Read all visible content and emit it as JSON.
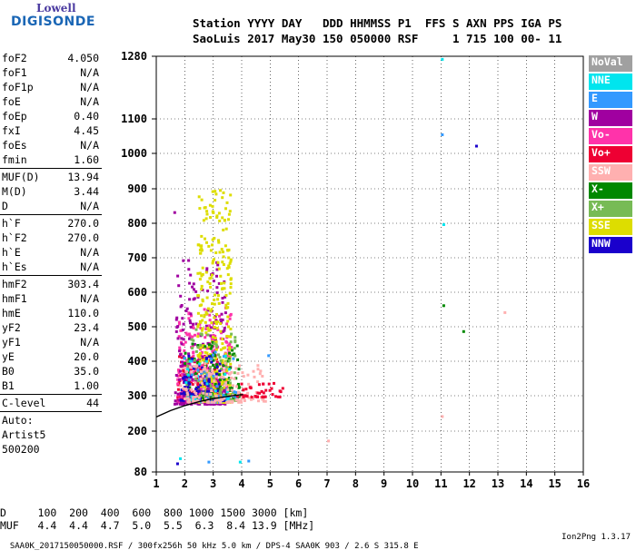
{
  "logo": {
    "line1": "Lowell",
    "line2": "DIGISONDE"
  },
  "header": {
    "row1": "Station YYYY DAY   DDD HHMMSS P1  FFS S AXN PPS IGA PS",
    "row2": "SaoLuis 2017 May30 150 050000 RSF     1 715 100 00- 11"
  },
  "params": [
    {
      "label": "foF2",
      "value": "4.050"
    },
    {
      "label": "foF1",
      "value": "N/A"
    },
    {
      "label": "foF1p",
      "value": "N/A"
    },
    {
      "label": "foE",
      "value": "N/A"
    },
    {
      "label": "foEp",
      "value": "0.40"
    },
    {
      "label": "fxI",
      "value": "4.45"
    },
    {
      "label": "foEs",
      "value": "N/A"
    },
    {
      "label": "fmin",
      "value": "1.60"
    },
    {
      "sep": true
    },
    {
      "label": "MUF(D)",
      "value": "13.94"
    },
    {
      "label": "M(D)",
      "value": "3.44"
    },
    {
      "label": "D",
      "value": "N/A"
    },
    {
      "sep": true
    },
    {
      "label": "h`F",
      "value": "270.0"
    },
    {
      "label": "h`F2",
      "value": "270.0"
    },
    {
      "label": "h`E",
      "value": "N/A"
    },
    {
      "label": "h`Es",
      "value": "N/A"
    },
    {
      "sep": true
    },
    {
      "label": "hmF2",
      "value": "303.4"
    },
    {
      "label": "hmF1",
      "value": "N/A"
    },
    {
      "label": "hmE",
      "value": "110.0"
    },
    {
      "label": "yF2",
      "value": "23.4"
    },
    {
      "label": "yF1",
      "value": "N/A"
    },
    {
      "label": "yE",
      "value": "20.0"
    },
    {
      "label": "B0",
      "value": "35.0"
    },
    {
      "label": "B1",
      "value": "1.00"
    },
    {
      "sep": true
    },
    {
      "label": "C-level",
      "value": "44"
    },
    {
      "sep": true
    },
    {
      "plain": "Auto:"
    },
    {
      "plain": "Artist5"
    },
    {
      "plain": "500200"
    }
  ],
  "legend": [
    {
      "label": "NoVal",
      "color": "#a0a0a0"
    },
    {
      "label": "NNE",
      "color": "#00e5ee"
    },
    {
      "label": "E",
      "color": "#3399ff"
    },
    {
      "label": "W",
      "color": "#a000a0"
    },
    {
      "label": "Vo-",
      "color": "#ff33aa"
    },
    {
      "label": "Vo+",
      "color": "#ee0033"
    },
    {
      "label": "SSW",
      "color": "#ffb0b0"
    },
    {
      "label": "X-",
      "color": "#008800"
    },
    {
      "label": "X+",
      "color": "#77bb55"
    },
    {
      "label": "SSE",
      "color": "#dddd00"
    },
    {
      "label": "NNW",
      "color": "#1a00cc"
    }
  ],
  "footer": {
    "row1": "D     100  200  400  600  800 1000 1500 3000 [km]",
    "row2": "MUF   4.4  4.4  4.7  5.0  5.5  6.3  8.4 13.9 [MHz]",
    "source": "SAA0K_2017150050000.RSF / 300fx256h 50 kHz 5.0 km / DPS-4 SAA0K 903 / 2.6 S 315.8 E",
    "version": "Ion2Png 1.3.17"
  },
  "chart_data": {
    "type": "scatter",
    "x_axis": {
      "range": [
        1,
        16
      ],
      "ticks": [
        "1",
        "2",
        "3",
        "4",
        "5",
        "6",
        "7",
        "8",
        "9",
        "10",
        "11",
        "12",
        "13",
        "14",
        "15",
        "16"
      ]
    },
    "y_axis": {
      "range": [
        80,
        1280
      ],
      "ticks": [
        "80",
        "200",
        "300",
        "400",
        "500",
        "600",
        "700",
        "800",
        "900",
        "1000",
        "1100",
        "1280"
      ]
    },
    "grid": true,
    "clusters": [
      {
        "color": "#ee0033",
        "x": [
          1.7,
          3.2
        ],
        "y": [
          285,
          420
        ],
        "count": 260
      },
      {
        "color": "#ff33aa",
        "x": [
          1.7,
          3.6
        ],
        "y": [
          285,
          560
        ],
        "count": 320
      },
      {
        "color": "#a000a0",
        "x": [
          1.6,
          3.4
        ],
        "y": [
          280,
          700
        ],
        "count": 240
      },
      {
        "color": "#dddd00",
        "x": [
          2.4,
          3.6
        ],
        "y": [
          285,
          900
        ],
        "count": 360
      },
      {
        "color": "#008800",
        "x": [
          1.9,
          3.9
        ],
        "y": [
          290,
          460
        ],
        "count": 110
      },
      {
        "color": "#77bb55",
        "x": [
          2.0,
          3.8
        ],
        "y": [
          290,
          500
        ],
        "count": 90
      },
      {
        "color": "#1a00cc",
        "x": [
          1.8,
          3.4
        ],
        "y": [
          290,
          420
        ],
        "count": 80
      },
      {
        "color": "#3399ff",
        "x": [
          1.9,
          3.8
        ],
        "y": [
          285,
          440
        ],
        "count": 50
      },
      {
        "color": "#00e5ee",
        "x": [
          2.0,
          3.6
        ],
        "y": [
          290,
          420
        ],
        "count": 30
      },
      {
        "color": "#ffb0b0",
        "x": [
          1.8,
          4.8
        ],
        "y": [
          285,
          400
        ],
        "count": 140
      },
      {
        "color": "#ee0033",
        "x": [
          3.8,
          5.4
        ],
        "y": [
          300,
          340
        ],
        "count": 40
      }
    ],
    "trace": [
      [
        1,
        240
      ],
      [
        1.5,
        258
      ],
      [
        2,
        272
      ],
      [
        2.5,
        283
      ],
      [
        3,
        292
      ],
      [
        3.5,
        298
      ],
      [
        3.9,
        302
      ],
      [
        4.05,
        303.4
      ]
    ],
    "outliers": [
      {
        "x": 1.6,
        "y": 835,
        "color": "#a000a0"
      },
      {
        "x": 11,
        "y": 1275,
        "color": "#00e5ee"
      },
      {
        "x": 11,
        "y": 1058,
        "color": "#3399ff"
      },
      {
        "x": 12.2,
        "y": 1025,
        "color": "#1a00cc"
      },
      {
        "x": 11.05,
        "y": 800,
        "color": "#00e5ee"
      },
      {
        "x": 11.05,
        "y": 565,
        "color": "#008800"
      },
      {
        "x": 11.75,
        "y": 490,
        "color": "#008800"
      },
      {
        "x": 13.2,
        "y": 545,
        "color": "#ffb0b0"
      },
      {
        "x": 7,
        "y": 175,
        "color": "#ffb0b0"
      },
      {
        "x": 11,
        "y": 245,
        "color": "#ffb0b0"
      },
      {
        "x": 1.8,
        "y": 123,
        "color": "#00e5ee"
      },
      {
        "x": 2.8,
        "y": 113,
        "color": "#3399ff"
      },
      {
        "x": 3.9,
        "y": 113,
        "color": "#00e5ee"
      },
      {
        "x": 4.2,
        "y": 116,
        "color": "#3399ff"
      },
      {
        "x": 1.7,
        "y": 108,
        "color": "#1a00cc"
      },
      {
        "x": 4.9,
        "y": 420,
        "color": "#3399ff"
      }
    ]
  }
}
